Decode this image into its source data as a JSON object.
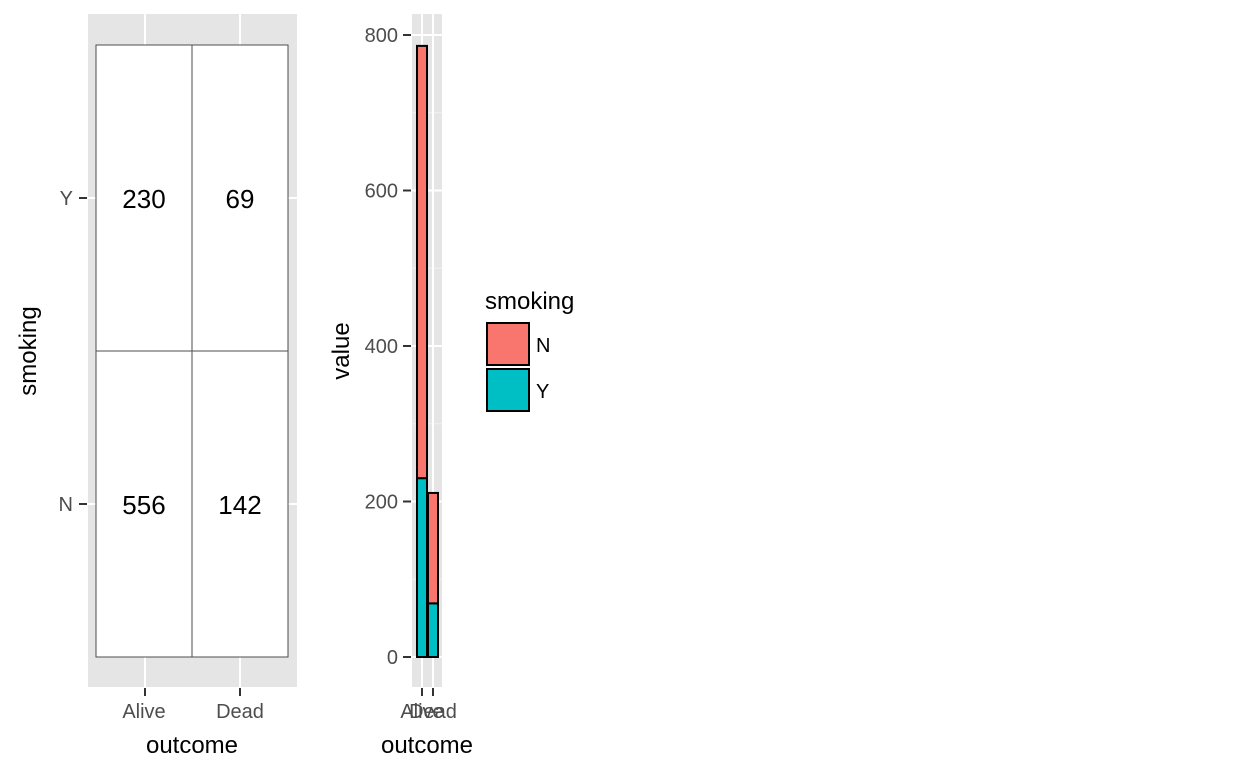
{
  "chart_data": [
    {
      "type": "table",
      "xlabel": "outcome",
      "ylabel": "smoking",
      "x_categories": [
        "Alive",
        "Dead"
      ],
      "y_categories": [
        "N",
        "Y"
      ],
      "cells": [
        {
          "x": "Alive",
          "y": "Y",
          "value": "230"
        },
        {
          "x": "Dead",
          "y": "Y",
          "value": "69"
        },
        {
          "x": "Alive",
          "y": "N",
          "value": "556"
        },
        {
          "x": "Dead",
          "y": "N",
          "value": "142"
        }
      ],
      "grid": true
    },
    {
      "type": "bar",
      "stacked": true,
      "xlabel": "outcome",
      "ylabel": "value",
      "categories": [
        "Alive",
        "Dead"
      ],
      "series": [
        {
          "name": "N",
          "values": [
            556,
            142
          ],
          "color": "#F8766D"
        },
        {
          "name": "Y",
          "values": [
            230,
            69
          ],
          "color": "#00BFC4"
        }
      ],
      "ylim": [
        0,
        800
      ],
      "yticks": [
        "0",
        "200",
        "400",
        "600",
        "800"
      ],
      "grid": true,
      "legend": {
        "title": "smoking",
        "position": "right",
        "entries": [
          "N",
          "Y"
        ]
      }
    }
  ]
}
